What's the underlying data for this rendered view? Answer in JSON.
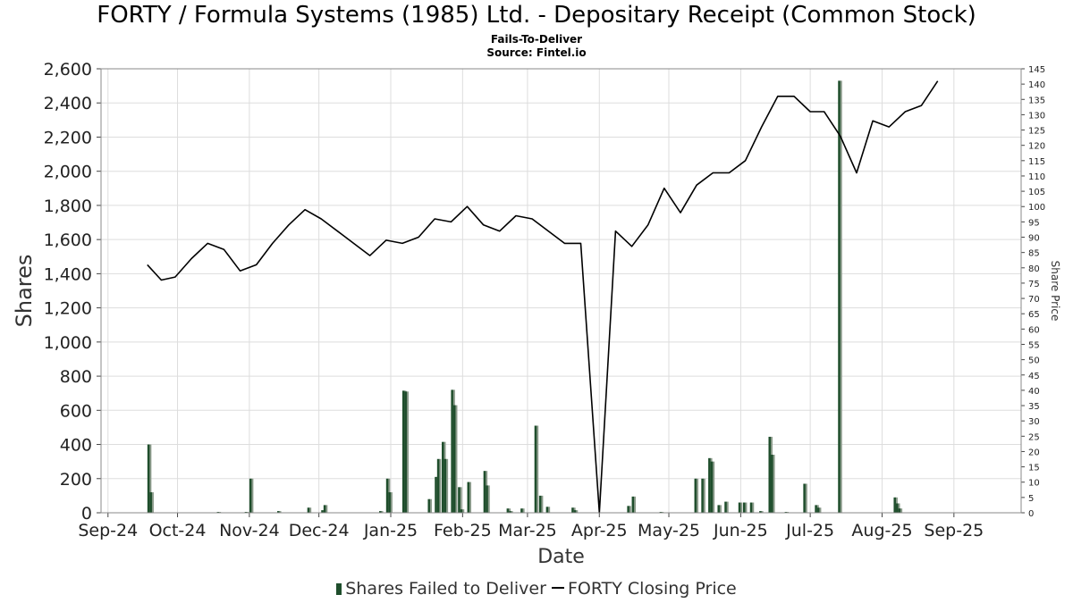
{
  "title": "FORTY / Formula Systems (1985) Ltd. - Depositary Receipt (Common Stock)",
  "subtitle": "Fails-To-Deliver",
  "source": "Source: Fintel.io",
  "chart_data": {
    "type": "bar",
    "xlabel": "Date",
    "ylabel": "Shares",
    "y2label": "Share Price",
    "grid": true,
    "legend_placement": "bottom",
    "x_ticks": [
      "Sep-24",
      "Oct-24",
      "Nov-24",
      "Dec-24",
      "Jan-25",
      "Feb-25",
      "Mar-25",
      "Apr-25",
      "May-25",
      "Jun-25",
      "Jul-25",
      "Aug-25",
      "Sep-25"
    ],
    "x_range": [
      "2024-08-29",
      "2025-09-30"
    ],
    "ylim": [
      0,
      2600
    ],
    "y_ticks": [
      "0",
      "200",
      "400",
      "600",
      "800",
      "1,000",
      "1,200",
      "1,400",
      "1,600",
      "1,800",
      "2,000",
      "2,200",
      "2,400",
      "2,600"
    ],
    "y2lim": [
      0,
      145
    ],
    "y2_ticks": [
      "0",
      "5",
      "10",
      "15",
      "20",
      "25",
      "30",
      "35",
      "40",
      "45",
      "50",
      "55",
      "60",
      "65",
      "70",
      "75",
      "80",
      "85",
      "90",
      "95",
      "100",
      "105",
      "110",
      "115",
      "120",
      "125",
      "130",
      "135",
      "140",
      "145"
    ],
    "colors": {
      "bars": "#1f4e2c",
      "bars_shadow": "#8a9a8a",
      "price_line": "#000000",
      "grid": "#dddddd"
    },
    "series": [
      {
        "name": "Shares Failed to Deliver",
        "type": "bar",
        "points": [
          [
            "2024-09-18",
            400
          ],
          [
            "2024-09-19",
            120
          ],
          [
            "2024-10-18",
            5
          ],
          [
            "2024-10-30",
            5
          ],
          [
            "2024-11-01",
            200
          ],
          [
            "2024-11-13",
            10
          ],
          [
            "2024-11-26",
            30
          ],
          [
            "2024-12-02",
            15
          ],
          [
            "2024-12-03",
            45
          ],
          [
            "2024-12-27",
            10
          ],
          [
            "2024-12-30",
            200
          ],
          [
            "2024-12-31",
            120
          ],
          [
            "2025-01-06",
            715
          ],
          [
            "2025-01-07",
            710
          ],
          [
            "2025-01-17",
            80
          ],
          [
            "2025-01-20",
            210
          ],
          [
            "2025-01-21",
            315
          ],
          [
            "2025-01-23",
            415
          ],
          [
            "2025-01-24",
            315
          ],
          [
            "2025-01-27",
            720
          ],
          [
            "2025-01-28",
            630
          ],
          [
            "2025-01-30",
            150
          ],
          [
            "2025-01-31",
            20
          ],
          [
            "2025-02-03",
            180
          ],
          [
            "2025-02-10",
            245
          ],
          [
            "2025-02-11",
            160
          ],
          [
            "2025-02-20",
            25
          ],
          [
            "2025-02-21",
            10
          ],
          [
            "2025-02-26",
            25
          ],
          [
            "2025-03-04",
            510
          ],
          [
            "2025-03-06",
            100
          ],
          [
            "2025-03-09",
            35
          ],
          [
            "2025-03-20",
            30
          ],
          [
            "2025-03-21",
            15
          ],
          [
            "2025-04-13",
            40
          ],
          [
            "2025-04-15",
            95
          ],
          [
            "2025-04-27",
            5
          ],
          [
            "2025-05-12",
            200
          ],
          [
            "2025-05-15",
            200
          ],
          [
            "2025-05-18",
            320
          ],
          [
            "2025-05-19",
            300
          ],
          [
            "2025-05-22",
            45
          ],
          [
            "2025-05-25",
            65
          ],
          [
            "2025-05-31",
            60
          ],
          [
            "2025-06-02",
            60
          ],
          [
            "2025-06-05",
            60
          ],
          [
            "2025-06-09",
            10
          ],
          [
            "2025-06-13",
            445
          ],
          [
            "2025-06-14",
            340
          ],
          [
            "2025-06-20",
            5
          ],
          [
            "2025-06-28",
            170
          ],
          [
            "2025-07-03",
            45
          ],
          [
            "2025-07-04",
            30
          ],
          [
            "2025-07-13",
            2530
          ],
          [
            "2025-08-06",
            90
          ],
          [
            "2025-08-07",
            55
          ],
          [
            "2025-08-08",
            25
          ]
        ]
      },
      {
        "name": "FORTY Closing Price",
        "type": "line",
        "axis": "right",
        "points": [
          [
            "2024-09-18",
            81
          ],
          [
            "2024-09-24",
            76
          ],
          [
            "2024-09-30",
            77
          ],
          [
            "2024-10-07",
            83
          ],
          [
            "2024-10-14",
            88
          ],
          [
            "2024-10-21",
            86
          ],
          [
            "2024-10-28",
            79
          ],
          [
            "2024-11-04",
            81
          ],
          [
            "2024-11-11",
            88
          ],
          [
            "2024-11-18",
            94
          ],
          [
            "2024-11-25",
            99
          ],
          [
            "2024-12-02",
            96
          ],
          [
            "2024-12-09",
            92
          ],
          [
            "2024-12-16",
            88
          ],
          [
            "2024-12-23",
            84
          ],
          [
            "2024-12-30",
            89
          ],
          [
            "2025-01-06",
            88
          ],
          [
            "2025-01-13",
            90
          ],
          [
            "2025-01-20",
            96
          ],
          [
            "2025-01-27",
            95
          ],
          [
            "2025-02-03",
            100
          ],
          [
            "2025-02-10",
            94
          ],
          [
            "2025-02-17",
            92
          ],
          [
            "2025-02-24",
            97
          ],
          [
            "2025-03-03",
            96
          ],
          [
            "2025-03-17",
            88
          ],
          [
            "2025-03-24",
            88
          ],
          [
            "2025-04-01",
            0
          ],
          [
            "2025-04-08",
            92
          ],
          [
            "2025-04-15",
            87
          ],
          [
            "2025-04-22",
            94
          ],
          [
            "2025-04-29",
            106
          ],
          [
            "2025-05-06",
            98
          ],
          [
            "2025-05-13",
            107
          ],
          [
            "2025-05-20",
            111
          ],
          [
            "2025-05-27",
            111
          ],
          [
            "2025-06-03",
            115
          ],
          [
            "2025-06-10",
            126
          ],
          [
            "2025-06-17",
            136
          ],
          [
            "2025-06-24",
            136
          ],
          [
            "2025-07-01",
            131
          ],
          [
            "2025-07-07",
            131
          ],
          [
            "2025-07-14",
            123
          ],
          [
            "2025-07-21",
            111
          ],
          [
            "2025-07-28",
            128
          ],
          [
            "2025-08-04",
            126
          ],
          [
            "2025-08-11",
            131
          ],
          [
            "2025-08-18",
            133
          ],
          [
            "2025-08-25",
            141
          ]
        ]
      }
    ]
  }
}
